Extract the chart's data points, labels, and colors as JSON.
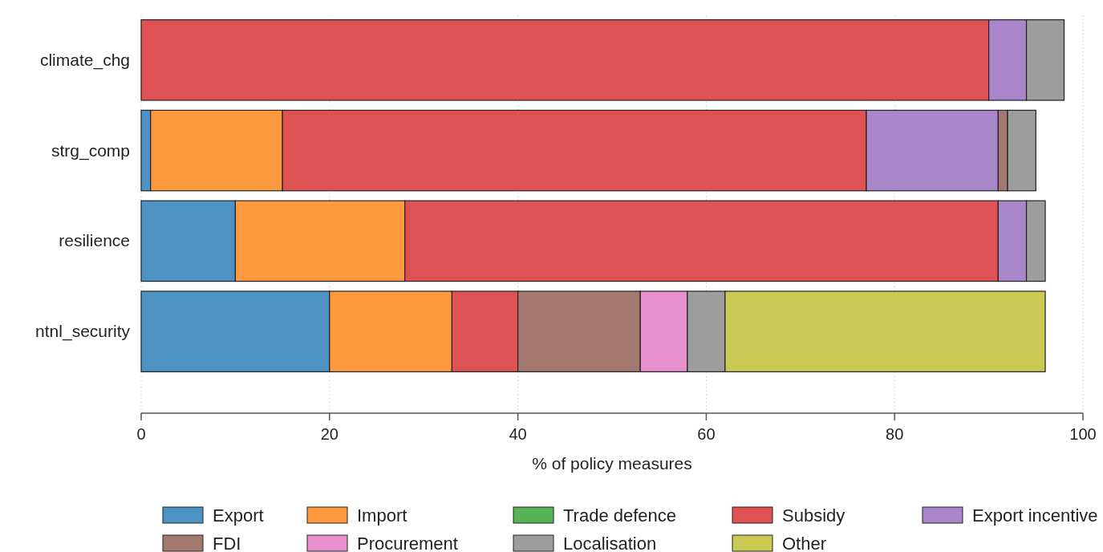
{
  "chart_data": {
    "type": "bar",
    "orientation": "horizontal",
    "stacked": true,
    "xlabel": "% of policy measures",
    "categories": [
      "climate_chg",
      "strg_comp",
      "resilience",
      "ntnl_security"
    ],
    "series": [
      {
        "name": "Export",
        "color": "#4c92c3",
        "values": [
          0,
          1,
          10,
          20
        ]
      },
      {
        "name": "Import",
        "color": "#ff993e",
        "values": [
          0,
          14,
          18,
          13
        ]
      },
      {
        "name": "Trade defence",
        "color": "#56b356",
        "values": [
          0,
          0,
          0,
          0
        ]
      },
      {
        "name": "Subsidy",
        "color": "#de5253",
        "values": [
          90,
          62,
          63,
          7
        ]
      },
      {
        "name": "Export incentive",
        "color": "#a985ca",
        "values": [
          4,
          14,
          3,
          0
        ]
      },
      {
        "name": "FDI",
        "color": "#a3786f",
        "values": [
          0,
          1,
          0,
          13
        ]
      },
      {
        "name": "Procurement",
        "color": "#e890ce",
        "values": [
          0,
          0,
          0,
          5
        ]
      },
      {
        "name": "Localisation",
        "color": "#9d9d9d",
        "values": [
          4,
          3,
          2,
          4
        ]
      },
      {
        "name": "Other",
        "color": "#c9c953",
        "values": [
          0,
          0,
          0,
          34
        ]
      }
    ],
    "xlim": [
      0,
      100
    ],
    "xticks": [
      0,
      20,
      40,
      60,
      80,
      100
    ],
    "grid": "x",
    "legend": "bottom"
  }
}
